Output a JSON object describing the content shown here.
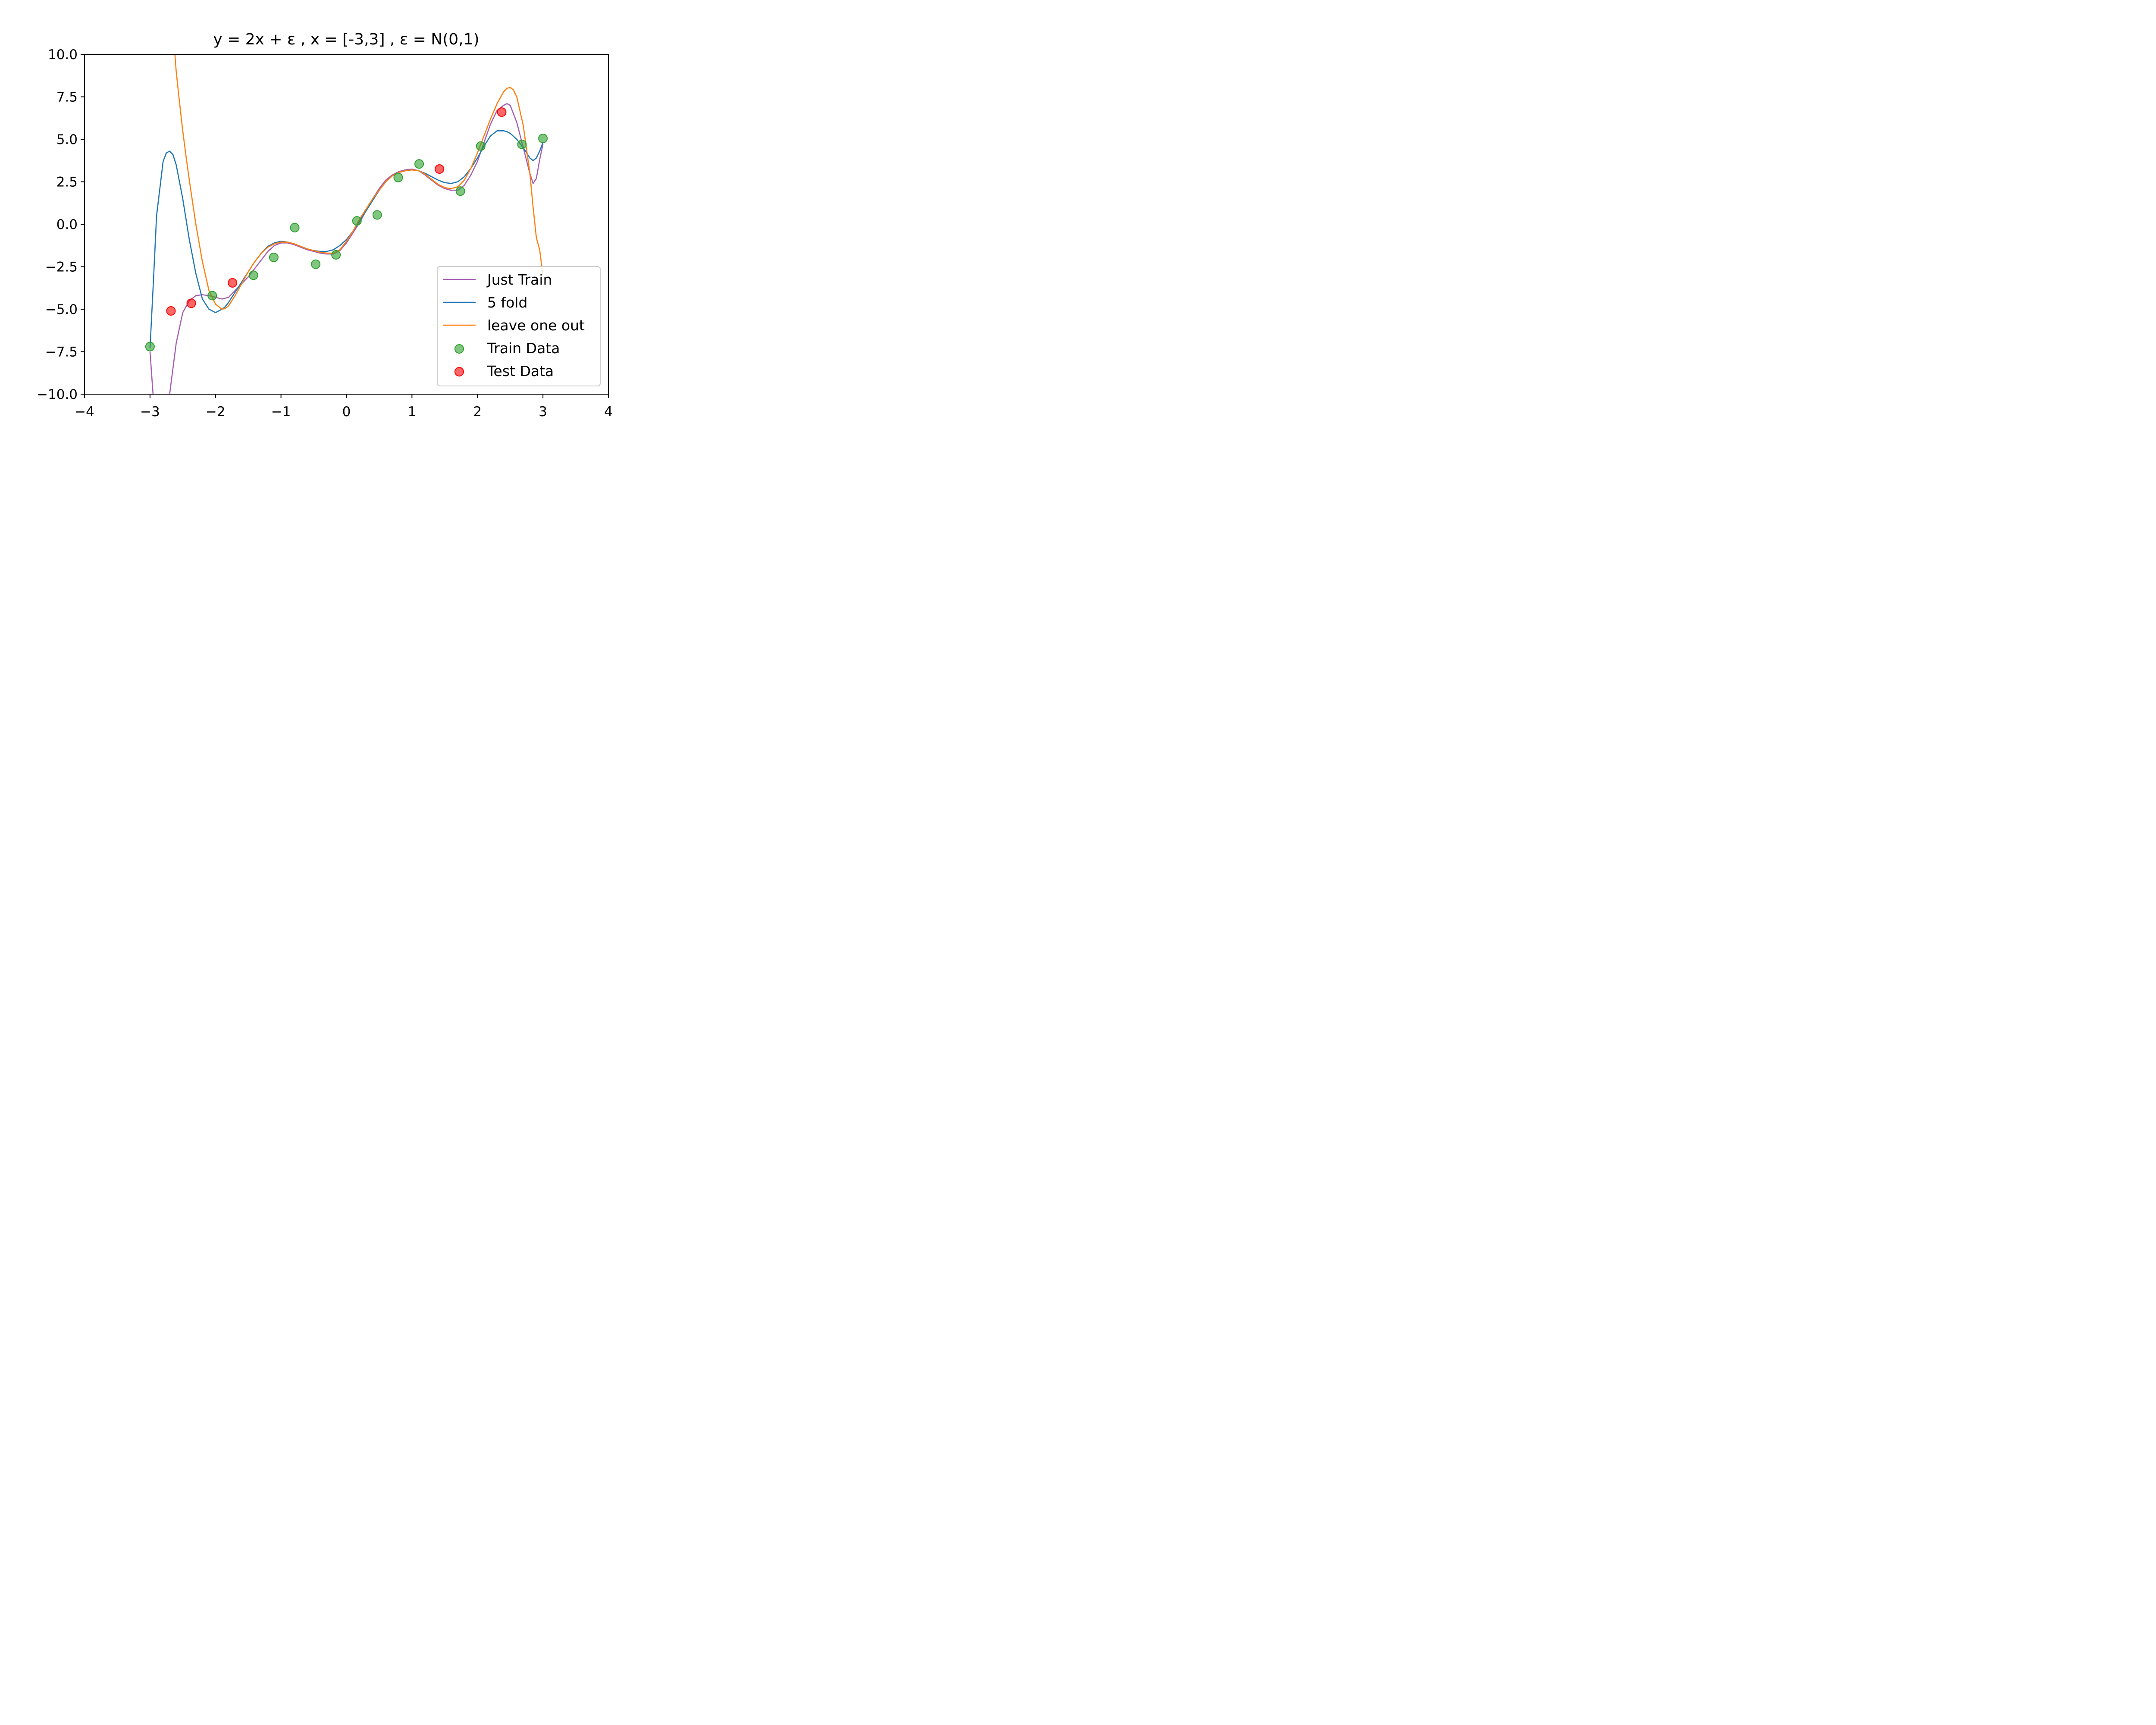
{
  "chart_data": {
    "type": "line",
    "title": "y = 2x + ε , x = [-3,3] , ε =  N(0,1)",
    "xlabel": "",
    "ylabel": "",
    "xlim": [
      -4,
      4
    ],
    "ylim": [
      -10,
      10
    ],
    "x_ticks": [
      -4,
      -3,
      -2,
      -1,
      0,
      1,
      2,
      3,
      4
    ],
    "x_tick_labels": [
      "−4",
      "−3",
      "−2",
      "−1",
      "0",
      "1",
      "2",
      "3",
      "4"
    ],
    "y_ticks": [
      10,
      7.5,
      5,
      2.5,
      0,
      -2.5,
      -5,
      -7.5,
      -10
    ],
    "y_tick_labels": [
      "10.0",
      "7.5",
      "5.0",
      "2.5",
      "0.0",
      "−2.5",
      "−5.0",
      "−7.5",
      "−10.0"
    ],
    "grid": false,
    "legend_position": "lower-right",
    "series": [
      {
        "name": "Just Train",
        "kind": "line",
        "color": "#a65fb3",
        "x": [
          -3.0,
          -2.95,
          -2.9,
          -2.8,
          -2.7,
          -2.6,
          -2.5,
          -2.4,
          -2.3,
          -2.2,
          -2.1,
          -2.0,
          -1.9,
          -1.8,
          -1.7,
          -1.6,
          -1.5,
          -1.4,
          -1.3,
          -1.2,
          -1.1,
          -1.0,
          -0.9,
          -0.8,
          -0.7,
          -0.6,
          -0.5,
          -0.4,
          -0.3,
          -0.2,
          -0.1,
          0.0,
          0.1,
          0.2,
          0.3,
          0.4,
          0.5,
          0.6,
          0.7,
          0.8,
          0.9,
          1.0,
          1.1,
          1.2,
          1.3,
          1.4,
          1.5,
          1.6,
          1.7,
          1.8,
          1.9,
          2.0,
          2.1,
          2.2,
          2.3,
          2.4,
          2.45,
          2.5,
          2.6,
          2.7,
          2.8,
          2.85,
          2.9,
          2.95,
          3.0
        ],
        "y": [
          -7.5,
          -10.2,
          -12.5,
          -12.5,
          -10.0,
          -7.0,
          -5.2,
          -4.5,
          -4.2,
          -4.15,
          -4.2,
          -4.3,
          -4.4,
          -4.3,
          -3.9,
          -3.5,
          -3.1,
          -2.6,
          -2.1,
          -1.6,
          -1.25,
          -1.1,
          -1.1,
          -1.2,
          -1.35,
          -1.5,
          -1.6,
          -1.7,
          -1.75,
          -1.75,
          -1.55,
          -1.1,
          -0.5,
          0.1,
          0.8,
          1.5,
          2.1,
          2.6,
          2.9,
          3.1,
          3.2,
          3.25,
          3.15,
          2.9,
          2.6,
          2.3,
          2.1,
          2.0,
          2.0,
          2.3,
          2.9,
          3.7,
          4.8,
          5.9,
          6.7,
          7.0,
          7.1,
          7.0,
          6.0,
          4.5,
          3.0,
          2.4,
          2.7,
          3.8,
          4.7
        ]
      },
      {
        "name": "5 fold",
        "kind": "line",
        "color": "#1f77b4",
        "x": [
          -3.0,
          -2.95,
          -2.9,
          -2.8,
          -2.75,
          -2.7,
          -2.65,
          -2.6,
          -2.5,
          -2.4,
          -2.3,
          -2.2,
          -2.1,
          -2.0,
          -1.9,
          -1.85,
          -1.8,
          -1.7,
          -1.6,
          -1.5,
          -1.4,
          -1.3,
          -1.2,
          -1.1,
          -1.0,
          -0.9,
          -0.8,
          -0.7,
          -0.6,
          -0.5,
          -0.4,
          -0.3,
          -0.2,
          -0.1,
          0.0,
          0.1,
          0.2,
          0.3,
          0.4,
          0.5,
          0.6,
          0.7,
          0.8,
          0.9,
          1.0,
          1.1,
          1.2,
          1.3,
          1.4,
          1.5,
          1.6,
          1.7,
          1.8,
          1.9,
          2.0,
          2.1,
          2.2,
          2.3,
          2.4,
          2.45,
          2.5,
          2.6,
          2.7,
          2.8,
          2.85,
          2.9,
          2.95,
          3.0
        ],
        "y": [
          -7.3,
          -3.5,
          0.5,
          3.7,
          4.2,
          4.3,
          4.1,
          3.5,
          1.5,
          -0.9,
          -2.9,
          -4.4,
          -5.0,
          -5.2,
          -5.0,
          -4.85,
          -4.6,
          -4.0,
          -3.4,
          -2.8,
          -2.2,
          -1.7,
          -1.3,
          -1.1,
          -1.0,
          -1.05,
          -1.15,
          -1.3,
          -1.45,
          -1.55,
          -1.6,
          -1.6,
          -1.5,
          -1.25,
          -0.9,
          -0.4,
          0.2,
          0.8,
          1.4,
          2.0,
          2.5,
          2.85,
          3.05,
          3.15,
          3.2,
          3.15,
          3.0,
          2.8,
          2.6,
          2.45,
          2.4,
          2.5,
          2.8,
          3.3,
          3.9,
          4.6,
          5.2,
          5.5,
          5.5,
          5.45,
          5.35,
          5.0,
          4.5,
          3.9,
          3.75,
          3.9,
          4.3,
          4.8
        ]
      },
      {
        "name": "leave one out",
        "kind": "line",
        "color": "#ff7f0e",
        "x": [
          -2.62,
          -2.6,
          -2.55,
          -2.5,
          -2.45,
          -2.4,
          -2.3,
          -2.2,
          -2.1,
          -2.0,
          -1.9,
          -1.85,
          -1.8,
          -1.7,
          -1.6,
          -1.5,
          -1.4,
          -1.3,
          -1.2,
          -1.1,
          -1.0,
          -0.9,
          -0.8,
          -0.7,
          -0.6,
          -0.5,
          -0.4,
          -0.3,
          -0.2,
          -0.1,
          0.0,
          0.1,
          0.2,
          0.3,
          0.4,
          0.5,
          0.6,
          0.7,
          0.8,
          0.9,
          1.0,
          1.1,
          1.2,
          1.3,
          1.4,
          1.5,
          1.6,
          1.7,
          1.8,
          1.9,
          2.0,
          2.1,
          2.2,
          2.3,
          2.4,
          2.45,
          2.5,
          2.55,
          2.6,
          2.7,
          2.8,
          2.85,
          2.9,
          2.95,
          3.0
        ],
        "y": [
          10.0,
          9.0,
          7.2,
          5.5,
          4.0,
          2.6,
          0.0,
          -2.2,
          -3.9,
          -4.7,
          -5.0,
          -4.95,
          -4.8,
          -4.2,
          -3.5,
          -2.8,
          -2.2,
          -1.7,
          -1.35,
          -1.15,
          -1.05,
          -1.05,
          -1.15,
          -1.3,
          -1.45,
          -1.55,
          -1.65,
          -1.7,
          -1.7,
          -1.5,
          -1.0,
          -0.4,
          0.3,
          0.9,
          1.5,
          2.0,
          2.5,
          2.85,
          3.05,
          3.15,
          3.2,
          3.15,
          2.95,
          2.65,
          2.35,
          2.15,
          2.1,
          2.2,
          2.6,
          3.3,
          4.2,
          5.2,
          6.2,
          7.1,
          7.8,
          8.0,
          8.05,
          7.9,
          7.5,
          5.8,
          3.0,
          1.0,
          -0.8,
          -1.5,
          -3.0
        ]
      },
      {
        "name": "Train Data",
        "kind": "scatter",
        "color": "#2ca02c",
        "x": [
          -3.0,
          -2.05,
          -1.42,
          -1.11,
          -0.79,
          -0.47,
          -0.16,
          0.16,
          0.47,
          0.79,
          1.11,
          1.74,
          2.05,
          2.68,
          3.0
        ],
        "y": [
          -7.2,
          -4.2,
          -3.0,
          -1.95,
          -0.2,
          -2.35,
          -1.8,
          0.2,
          0.55,
          2.75,
          3.55,
          1.95,
          4.6,
          4.7,
          5.05
        ]
      },
      {
        "name": "Test Data",
        "kind": "scatter",
        "color": "#ff0000",
        "x": [
          -2.68,
          -2.37,
          -1.74,
          1.42,
          2.37
        ],
        "y": [
          -5.1,
          -4.65,
          -3.45,
          3.25,
          6.6
        ]
      }
    ]
  }
}
